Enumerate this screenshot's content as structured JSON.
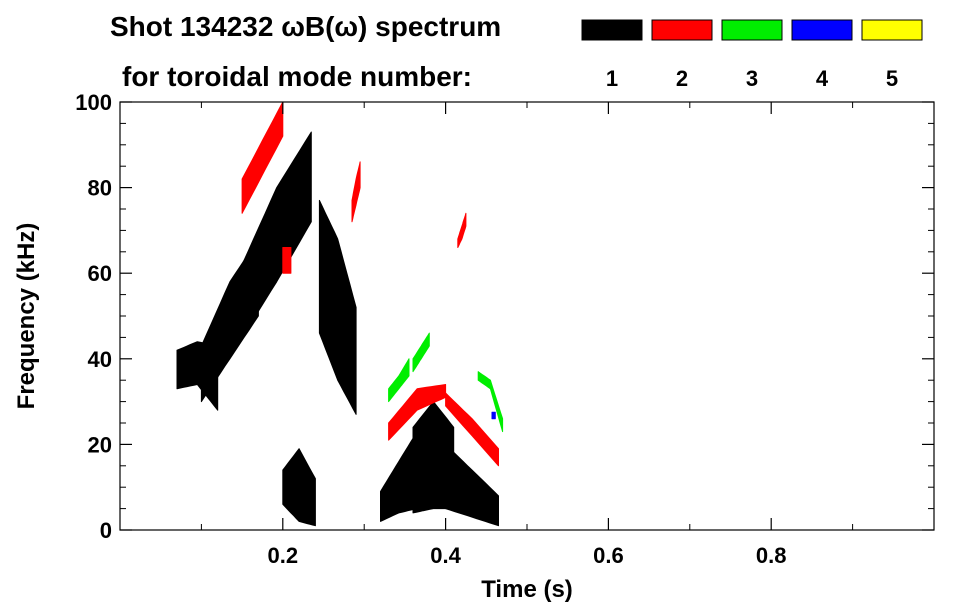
{
  "chart_data": {
    "type": "scatter",
    "title": "Shot 134232 ωB(ω) spectrum",
    "subtitle": "for toroidal mode number:",
    "xlabel": "Time (s)",
    "ylabel": "Frequency (kHz)",
    "xlim": [
      0.0,
      1.0
    ],
    "ylim": [
      0,
      100
    ],
    "xticks": [
      0.2,
      0.4,
      0.6,
      0.8
    ],
    "xtick_labels": [
      "0.2",
      "0.4",
      "0.6",
      "0.8"
    ],
    "yticks": [
      0,
      20,
      40,
      60,
      80,
      100
    ],
    "ytick_labels": [
      "0",
      "20",
      "40",
      "60",
      "80",
      "100"
    ],
    "grid": false,
    "legend_placement": "top-right",
    "legend": [
      {
        "label": "1",
        "color": "#000000"
      },
      {
        "label": "2",
        "color": "#ff0000"
      },
      {
        "label": "3",
        "color": "#00ee00"
      },
      {
        "label": "4",
        "color": "#0000ff"
      },
      {
        "label": "5",
        "color": "#ffff00"
      }
    ],
    "series": [
      {
        "name": "1",
        "color": "#000000",
        "regions": [
          {
            "t_start": 0.07,
            "t_end": 0.12,
            "f_low": [
              33,
              34,
              28
            ],
            "f_high": [
              42,
              44,
              43
            ]
          },
          {
            "t_start": 0.1,
            "t_end": 0.17,
            "f_low": [
              30,
              40,
              50
            ],
            "f_high": [
              43,
              58,
              68
            ]
          },
          {
            "t_start": 0.15,
            "t_end": 0.235,
            "f_low": [
              45,
              58,
              72
            ],
            "f_high": [
              62,
              80,
              93
            ]
          },
          {
            "t_start": 0.2,
            "t_end": 0.24,
            "f_low": [
              6,
              2,
              1
            ],
            "f_high": [
              14,
              19,
              12
            ]
          },
          {
            "t_start": 0.245,
            "t_end": 0.29,
            "f_low": [
              46,
              35,
              27
            ],
            "f_high": [
              77,
              68,
              52
            ]
          },
          {
            "t_start": 0.32,
            "t_end": 0.365,
            "f_low": [
              2,
              4,
              5
            ],
            "f_high": [
              9,
              16,
              23
            ]
          },
          {
            "t_start": 0.36,
            "t_end": 0.41,
            "f_low": [
              4,
              5,
              5
            ],
            "f_high": [
              24,
              30,
              24
            ]
          },
          {
            "t_start": 0.4,
            "t_end": 0.465,
            "f_low": [
              5,
              3,
              1
            ],
            "f_high": [
              20,
              14,
              8
            ]
          }
        ]
      },
      {
        "name": "2",
        "color": "#ff0000",
        "regions": [
          {
            "t_start": 0.15,
            "t_end": 0.2,
            "f_low": [
              74,
              83,
              92
            ],
            "f_high": [
              82,
              91,
              100
            ]
          },
          {
            "t_start": 0.2,
            "t_end": 0.21,
            "f_low": [
              60,
              60,
              60
            ],
            "f_high": [
              66,
              66,
              66
            ]
          },
          {
            "t_start": 0.285,
            "t_end": 0.295,
            "f_low": [
              72,
              76,
              80
            ],
            "f_high": [
              77,
              82,
              86
            ]
          },
          {
            "t_start": 0.33,
            "t_end": 0.4,
            "f_low": [
              21,
              28,
              31
            ],
            "f_high": [
              25,
              33,
              34
            ]
          },
          {
            "t_start": 0.4,
            "t_end": 0.465,
            "f_low": [
              29,
              22,
              15
            ],
            "f_high": [
              32,
              26,
              19
            ]
          },
          {
            "t_start": 0.415,
            "t_end": 0.425,
            "f_low": [
              66,
              68,
              71
            ],
            "f_high": [
              68,
              71,
              74
            ]
          }
        ]
      },
      {
        "name": "3",
        "color": "#00ee00",
        "regions": [
          {
            "t_start": 0.33,
            "t_end": 0.355,
            "f_low": [
              30,
              33,
              36
            ],
            "f_high": [
              33,
              36,
              40
            ]
          },
          {
            "t_start": 0.36,
            "t_end": 0.38,
            "f_low": [
              37,
              40,
              43
            ],
            "f_high": [
              40,
              43,
              46
            ]
          },
          {
            "t_start": 0.44,
            "t_end": 0.47,
            "f_low": [
              35,
              33,
              23
            ],
            "f_high": [
              37,
              35,
              26
            ]
          }
        ]
      },
      {
        "name": "4",
        "color": "#0000ff",
        "regions": [
          {
            "t_start": 0.457,
            "t_end": 0.461,
            "f_low": [
              26,
              26,
              26
            ],
            "f_high": [
              27.5,
              27.5,
              27.5
            ]
          }
        ]
      }
    ]
  }
}
